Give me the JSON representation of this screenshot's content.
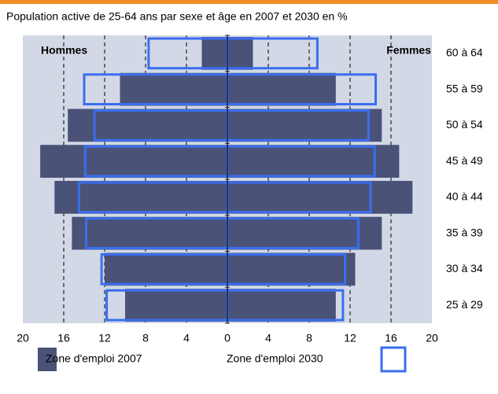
{
  "chart_data": {
    "type": "pyramid",
    "title": "Population active de 25-64 ans par sexe et âge en 2007 et 2030 en %",
    "left_label": "Hommes",
    "right_label": "Femmes",
    "categories": [
      "25 à 29",
      "30 à 34",
      "35 à 39",
      "40 à 44",
      "45 à 49",
      "50 à 54",
      "55 à 59",
      "60 à 64"
    ],
    "series": [
      {
        "name": "Zone d'emploi 2007",
        "color": "#4a5278",
        "style": "filled",
        "hommes": [
          10,
          12,
          15.2,
          16.9,
          18.3,
          15.6,
          10.5,
          2.5
        ],
        "femmes": [
          10.6,
          12.5,
          15.1,
          18.1,
          16.8,
          15.1,
          10.6,
          2.5
        ]
      },
      {
        "name": "Zone d'emploi 2030",
        "color": "#3a6ef0",
        "style": "outline",
        "hommes": [
          11.8,
          12.3,
          13.8,
          14.5,
          13.9,
          13,
          14,
          7.7
        ],
        "femmes": [
          11.3,
          11.5,
          12.8,
          14,
          14.4,
          13.8,
          14.5,
          8.8
        ]
      }
    ],
    "xlim": [
      -20,
      20
    ],
    "xticks": [
      {
        "value": -20,
        "label": "20"
      },
      {
        "value": -16,
        "label": "16"
      },
      {
        "value": -12,
        "label": "12"
      },
      {
        "value": -8,
        "label": "8"
      },
      {
        "value": -4,
        "label": "4"
      },
      0,
      4,
      8,
      12,
      16,
      20
    ],
    "grid": true,
    "background": "#d3d8e6"
  }
}
